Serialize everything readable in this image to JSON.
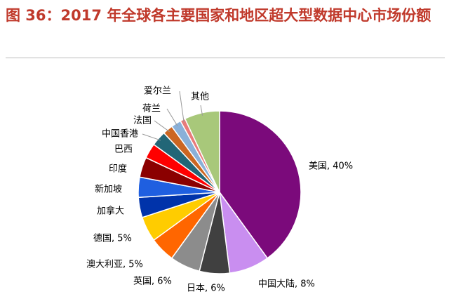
{
  "chart_data": {
    "type": "pie",
    "title": "图 36：2017 年全球各主要国家和地区超大型数据中心市场份额",
    "categories": [
      "美国, 40%",
      "中国大陆, 8%",
      "日本, 6%",
      "英国, 6%",
      "澳大利亚, 5%",
      "德国, 5%",
      "加拿大",
      "新加坡",
      "印度",
      "巴西",
      "中国香港",
      "法国",
      "荷兰",
      "爱尔兰",
      "其他"
    ],
    "values": [
      40,
      8,
      6,
      6,
      5,
      5,
      4,
      4,
      4,
      3,
      3,
      2,
      2,
      1,
      7
    ],
    "colors": [
      "#7b0a7b",
      "#c98ef0",
      "#404040",
      "#8c8c8c",
      "#ff6600",
      "#ffcc00",
      "#0033aa",
      "#1f5fe0",
      "#8b0000",
      "#ff0000",
      "#226677",
      "#cc6622",
      "#8ab0d8",
      "#e87b7b",
      "#a8c87a"
    ]
  }
}
